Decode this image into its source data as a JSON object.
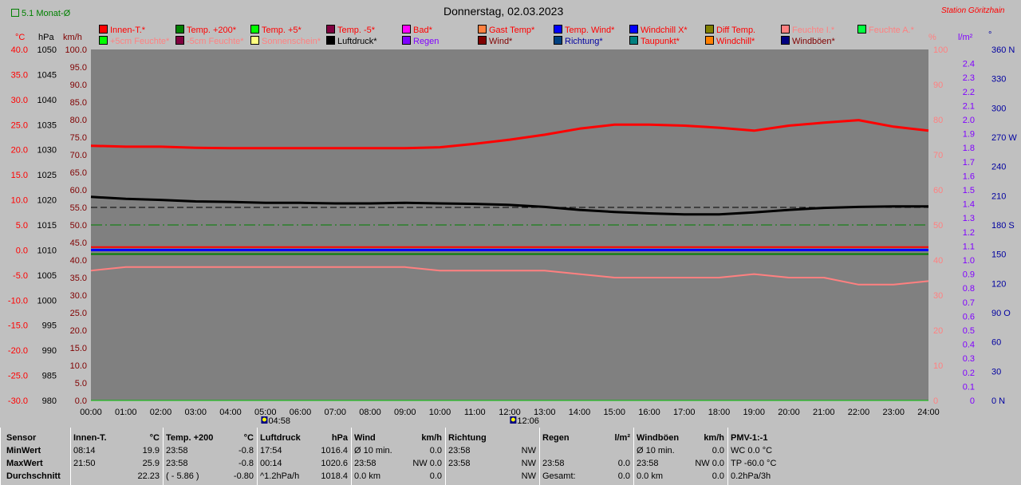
{
  "header": {
    "title": "Donnerstag, 02.03.2023",
    "station": "Station Göritzhain",
    "toggle_label": "5.1 Monat-Ø"
  },
  "unit_labels": {
    "temp": "°C",
    "hpa": "hPa",
    "kmh": "km/h",
    "percent": "%",
    "rain": "l/m²",
    "dir": "°"
  },
  "colors": {
    "plot_bg": "#808080",
    "temp_axis": "#ff0000",
    "percent_axis": "#ff8080",
    "rain_axis": "#8000ff",
    "dir_axis": "#0000a0",
    "station": "#ff0000",
    "toggle": "#008000"
  },
  "legend": [
    {
      "label": "Innen-T.*",
      "color": "#ff0000",
      "text_color": "#ff0000"
    },
    {
      "label": "Temp. +200*",
      "color": "#008000",
      "text_color": "#ff0000"
    },
    {
      "label": "Temp. +5*",
      "color": "#00ff00",
      "text_color": "#ff0000"
    },
    {
      "label": "Temp. -5*",
      "color": "#800040",
      "text_color": "#ff0000"
    },
    {
      "label": "Bad*",
      "color": "#ff00ff",
      "text_color": "#ff0000"
    },
    {
      "label": "Gast Temp*",
      "color": "#ff8040",
      "text_color": "#ff0000"
    },
    {
      "label": "Temp. Wind*",
      "color": "#0000ff",
      "text_color": "#ff0000"
    },
    {
      "label": "Windchill X*",
      "color": "#0000ff",
      "text_color": "#ff0000"
    },
    {
      "label": "Diff Temp.",
      "color": "#808000",
      "text_color": "#ff0000"
    },
    {
      "label": "Feuchte I.*",
      "color": "#ff8080",
      "text_color": "#ff8080"
    },
    {
      "label": "Feuchte A.*",
      "color": "#00ff40",
      "text_color": "#ff8080"
    },
    {
      "label": "+5cm Feuchte*",
      "color": "#00ff00",
      "text_color": "#ff8080"
    },
    {
      "label": "-5cm Feuchte*",
      "color": "#800040",
      "text_color": "#ff8080"
    },
    {
      "label": "Sonnenschein*",
      "color": "#ffff80",
      "text_color": "#ff8080"
    },
    {
      "label": "Luftdruck*",
      "color": "#000000",
      "text_color": "#000000"
    },
    {
      "label": "Regen",
      "color": "#8000ff",
      "text_color": "#8000ff"
    },
    {
      "label": "Wind*",
      "color": "#800000",
      "text_color": "#800000"
    },
    {
      "label": "Richtung*",
      "color": "#004080",
      "text_color": "#0000a0"
    },
    {
      "label": "Taupunkt*",
      "color": "#008080",
      "text_color": "#ff0000"
    },
    {
      "label": "Windchill*",
      "color": "#ff8000",
      "text_color": "#ff0000"
    },
    {
      "label": "Windböen*",
      "color": "#000080",
      "text_color": "#800000"
    }
  ],
  "chart_data": {
    "type": "line",
    "x_ticks": [
      "00:00",
      "01:00",
      "02:00",
      "03:00",
      "04:00",
      "05:00",
      "06:00",
      "07:00",
      "08:00",
      "09:00",
      "10:00",
      "11:00",
      "12:00",
      "13:00",
      "14:00",
      "15:00",
      "16:00",
      "17:00",
      "18:00",
      "19:00",
      "20:00",
      "21:00",
      "22:00",
      "23:00",
      "24:00"
    ],
    "sun_markers": [
      {
        "time": 4.97,
        "label": "04:58"
      },
      {
        "time": 12.1,
        "label": "12:06"
      }
    ],
    "axes": {
      "temp": {
        "ticks": [
          "40.0",
          "35.0",
          "30.0",
          "25.0",
          "20.0",
          "15.0",
          "10.0",
          "5.0",
          "0.0",
          "-5.0",
          "-10.0",
          "-15.0",
          "-20.0",
          "-25.0",
          "-30.0"
        ],
        "range": [
          -30,
          40
        ]
      },
      "hpa": {
        "ticks": [
          "1050",
          "1045",
          "1040",
          "1035",
          "1030",
          "1025",
          "1020",
          "1015",
          "1010",
          "1005",
          "1000",
          "995",
          "990",
          "985",
          "980"
        ],
        "range": [
          980,
          1050
        ]
      },
      "kmh": {
        "ticks": [
          "100.0",
          "95.0",
          "90.0",
          "85.0",
          "80.0",
          "75.0",
          "70.0",
          "65.0",
          "60.0",
          "55.0",
          "50.0",
          "45.0",
          "40.0",
          "35.0",
          "30.0",
          "25.0",
          "20.0",
          "15.0",
          "10.0",
          "5.0",
          "0.0"
        ],
        "range": [
          0,
          100
        ]
      },
      "percent": {
        "ticks": [
          "100",
          "90",
          "80",
          "70",
          "60",
          "50",
          "40",
          "30",
          "20",
          "10",
          "0"
        ],
        "range": [
          0,
          100
        ]
      },
      "rain": {
        "ticks": [
          "2.4",
          "2.3",
          "2.2",
          "2.1",
          "2.0",
          "1.9",
          "1.8",
          "1.7",
          "1.6",
          "1.5",
          "1.4",
          "1.3",
          "1.2",
          "1.1",
          "1.0",
          "0.9",
          "0.8",
          "0.7",
          "0.6",
          "0.5",
          "0.4",
          "0.3",
          "0.2",
          "0.1",
          "0"
        ],
        "range": [
          0,
          2.5
        ]
      },
      "dir": {
        "ticks": [
          "360 N",
          "330",
          "300",
          "270 W",
          "240",
          "210",
          "180 S",
          "150",
          "120",
          "90 O",
          "60",
          "30",
          "0 N"
        ],
        "range": [
          0,
          360
        ]
      }
    },
    "reference_lines": [
      {
        "axis": "kmh",
        "value": 55.0,
        "color": "#000000",
        "style": "dash"
      },
      {
        "axis": "kmh",
        "value": 50.0,
        "color": "#008000",
        "style": "dashdot"
      }
    ],
    "series": [
      {
        "name": "Innen-T.*",
        "axis": "temp",
        "color": "#ff0000",
        "width": 3,
        "x": [
          0,
          1,
          2,
          3,
          4,
          5,
          6,
          7,
          8,
          9,
          10,
          11,
          12,
          13,
          14,
          15,
          16,
          17,
          18,
          19,
          20,
          21,
          22,
          23,
          24
        ],
        "y": [
          20.8,
          20.6,
          20.6,
          20.4,
          20.3,
          20.3,
          20.3,
          20.3,
          20.3,
          20.3,
          20.5,
          21.2,
          22.0,
          23.0,
          24.2,
          25.0,
          25.0,
          24.8,
          24.4,
          23.8,
          24.8,
          25.4,
          25.9,
          24.6,
          23.8
        ]
      },
      {
        "name": "Luftdruck*",
        "axis": "hpa",
        "color": "#000000",
        "width": 3,
        "x": [
          0,
          1,
          2,
          3,
          4,
          5,
          6,
          7,
          8,
          9,
          10,
          11,
          12,
          13,
          14,
          15,
          16,
          17,
          18,
          19,
          20,
          21,
          22,
          23,
          24
        ],
        "y": [
          1020.6,
          1020.2,
          1020.0,
          1019.7,
          1019.6,
          1019.4,
          1019.4,
          1019.3,
          1019.3,
          1019.4,
          1019.3,
          1019.2,
          1019.0,
          1018.6,
          1018.0,
          1017.6,
          1017.3,
          1017.1,
          1017.1,
          1017.5,
          1018.0,
          1018.4,
          1018.6,
          1018.7,
          1018.7
        ]
      },
      {
        "name": "Feuchte I.*",
        "axis": "percent",
        "color": "#ff8080",
        "width": 2,
        "x": [
          0,
          1,
          2,
          3,
          4,
          5,
          6,
          7,
          8,
          9,
          10,
          11,
          12,
          13,
          14,
          15,
          16,
          17,
          18,
          19,
          20,
          21,
          22,
          23,
          24
        ],
        "y": [
          37,
          38,
          38,
          38,
          38,
          38,
          38,
          38,
          38,
          38,
          37,
          37,
          37,
          37,
          36,
          35,
          35,
          35,
          35,
          36,
          35,
          35,
          33,
          33,
          34
        ]
      },
      {
        "name": "Temp. +200*",
        "axis": "temp",
        "color": "#008000",
        "width": 2,
        "x": [
          0,
          24
        ],
        "y": [
          -0.8,
          -0.8
        ]
      },
      {
        "name": "Temp. Wind*",
        "axis": "temp",
        "color": "#0000ff",
        "width": 3,
        "x": [
          0,
          24
        ],
        "y": [
          0.0,
          0.0
        ]
      },
      {
        "name": "Windchill*",
        "axis": "temp",
        "color": "#ff0000",
        "width": 2,
        "x": [
          0,
          24
        ],
        "y": [
          0.6,
          0.6
        ]
      },
      {
        "name": "Wind*",
        "axis": "kmh",
        "color": "#00c000",
        "width": 1,
        "x": [
          0,
          24
        ],
        "y": [
          0.0,
          0.0
        ]
      }
    ]
  },
  "summary": {
    "sensor_col": {
      "header": "Sensor",
      "rows": [
        "MinWert",
        "MaxWert",
        "Durchschnitt"
      ]
    },
    "panels": [
      {
        "id": "innen",
        "title": "Innen-T.",
        "unit": "°C",
        "rows": [
          [
            "08:14",
            "19.9"
          ],
          [
            "21:50",
            "25.9"
          ],
          [
            "",
            "22.23"
          ]
        ]
      },
      {
        "id": "temp200",
        "title": "Temp. +200",
        "unit": "°C",
        "rows": [
          [
            "23:58",
            "-0.8"
          ],
          [
            "23:58",
            "-0.8"
          ],
          [
            "( - 5.86 )",
            "-0.80"
          ]
        ]
      },
      {
        "id": "luftdruck",
        "title": "Luftdruck",
        "unit": "hPa",
        "rows": [
          [
            "17:54",
            "1016.4"
          ],
          [
            "00:14",
            "1020.6"
          ],
          [
            "^1.2hPa/h",
            "1018.4"
          ]
        ]
      },
      {
        "id": "wind",
        "title": "Wind",
        "unit": "km/h",
        "rows": [
          [
            "Ø 10 min.",
            "0.0"
          ],
          [
            "23:58",
            "NW 0.0"
          ],
          [
            "0.0 km",
            "0.0"
          ]
        ]
      },
      {
        "id": "richtung",
        "title": "Richtung",
        "unit": "",
        "rows": [
          [
            "23:58",
            "NW"
          ],
          [
            "23:58",
            "NW"
          ],
          [
            "",
            "NW"
          ]
        ]
      },
      {
        "id": "regen",
        "title": "Regen",
        "unit": "l/m²",
        "rows": [
          [
            "",
            ""
          ],
          [
            "23:58",
            "0.0"
          ],
          [
            "Gesamt:",
            "0.0"
          ]
        ]
      },
      {
        "id": "windboeen",
        "title": "Windböen",
        "unit": "km/h",
        "rows": [
          [
            "Ø 10 min.",
            "0.0"
          ],
          [
            "23:58",
            "NW 0.0"
          ],
          [
            "0.0 km",
            "0.0"
          ]
        ]
      },
      {
        "id": "pmv",
        "title": "PMV-1:-1",
        "unit": "",
        "rows": [
          [
            "WC 0.0 °C",
            ""
          ],
          [
            "TP -60.0 °C",
            ""
          ],
          [
            "0.2hPa/3h",
            ""
          ]
        ]
      }
    ]
  }
}
